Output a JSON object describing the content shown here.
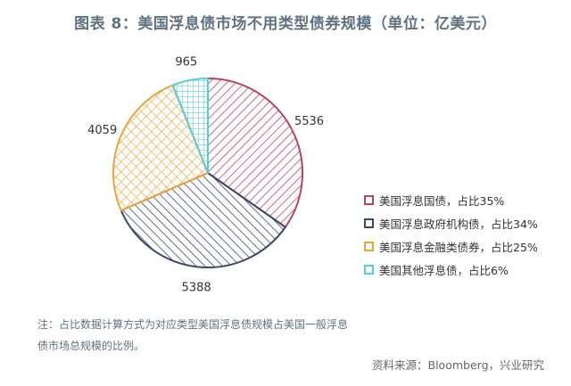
{
  "title": "图表 8：美国浮息债市场不用类型债券规模（单位：亿美元）",
  "note": "注：占比数据计算方式为对应类型美国浮息债规模占美国一般浮息债市场总规模的比例。",
  "source": "资料来源：Bloomberg，兴业研究",
  "chart_data": {
    "type": "pie",
    "title": "图表 8：美国浮息债市场不用类型债券规模（单位：亿美元）",
    "start_angle_deg": 0,
    "direction": "clockwise",
    "slices": [
      {
        "label": "美国浮息国债，占比35%",
        "value": 5536,
        "value_label": "5536",
        "color": "#b5475a",
        "pattern": "diagonal"
      },
      {
        "label": "美国浮息政府机构债，占比34%",
        "value": 5388,
        "value_label": "5388",
        "color": "#3d4a66",
        "pattern": "diagonal"
      },
      {
        "label": "美国浮息金融类债券，占比25%",
        "value": 4059,
        "value_label": "4059",
        "color": "#e7a53a",
        "pattern": "crosshatch"
      },
      {
        "label": "美国其他浮息债，占比6%",
        "value": 965,
        "value_label": "965",
        "color": "#56cdd0",
        "pattern": "grid"
      }
    ],
    "legend_position": "right"
  }
}
